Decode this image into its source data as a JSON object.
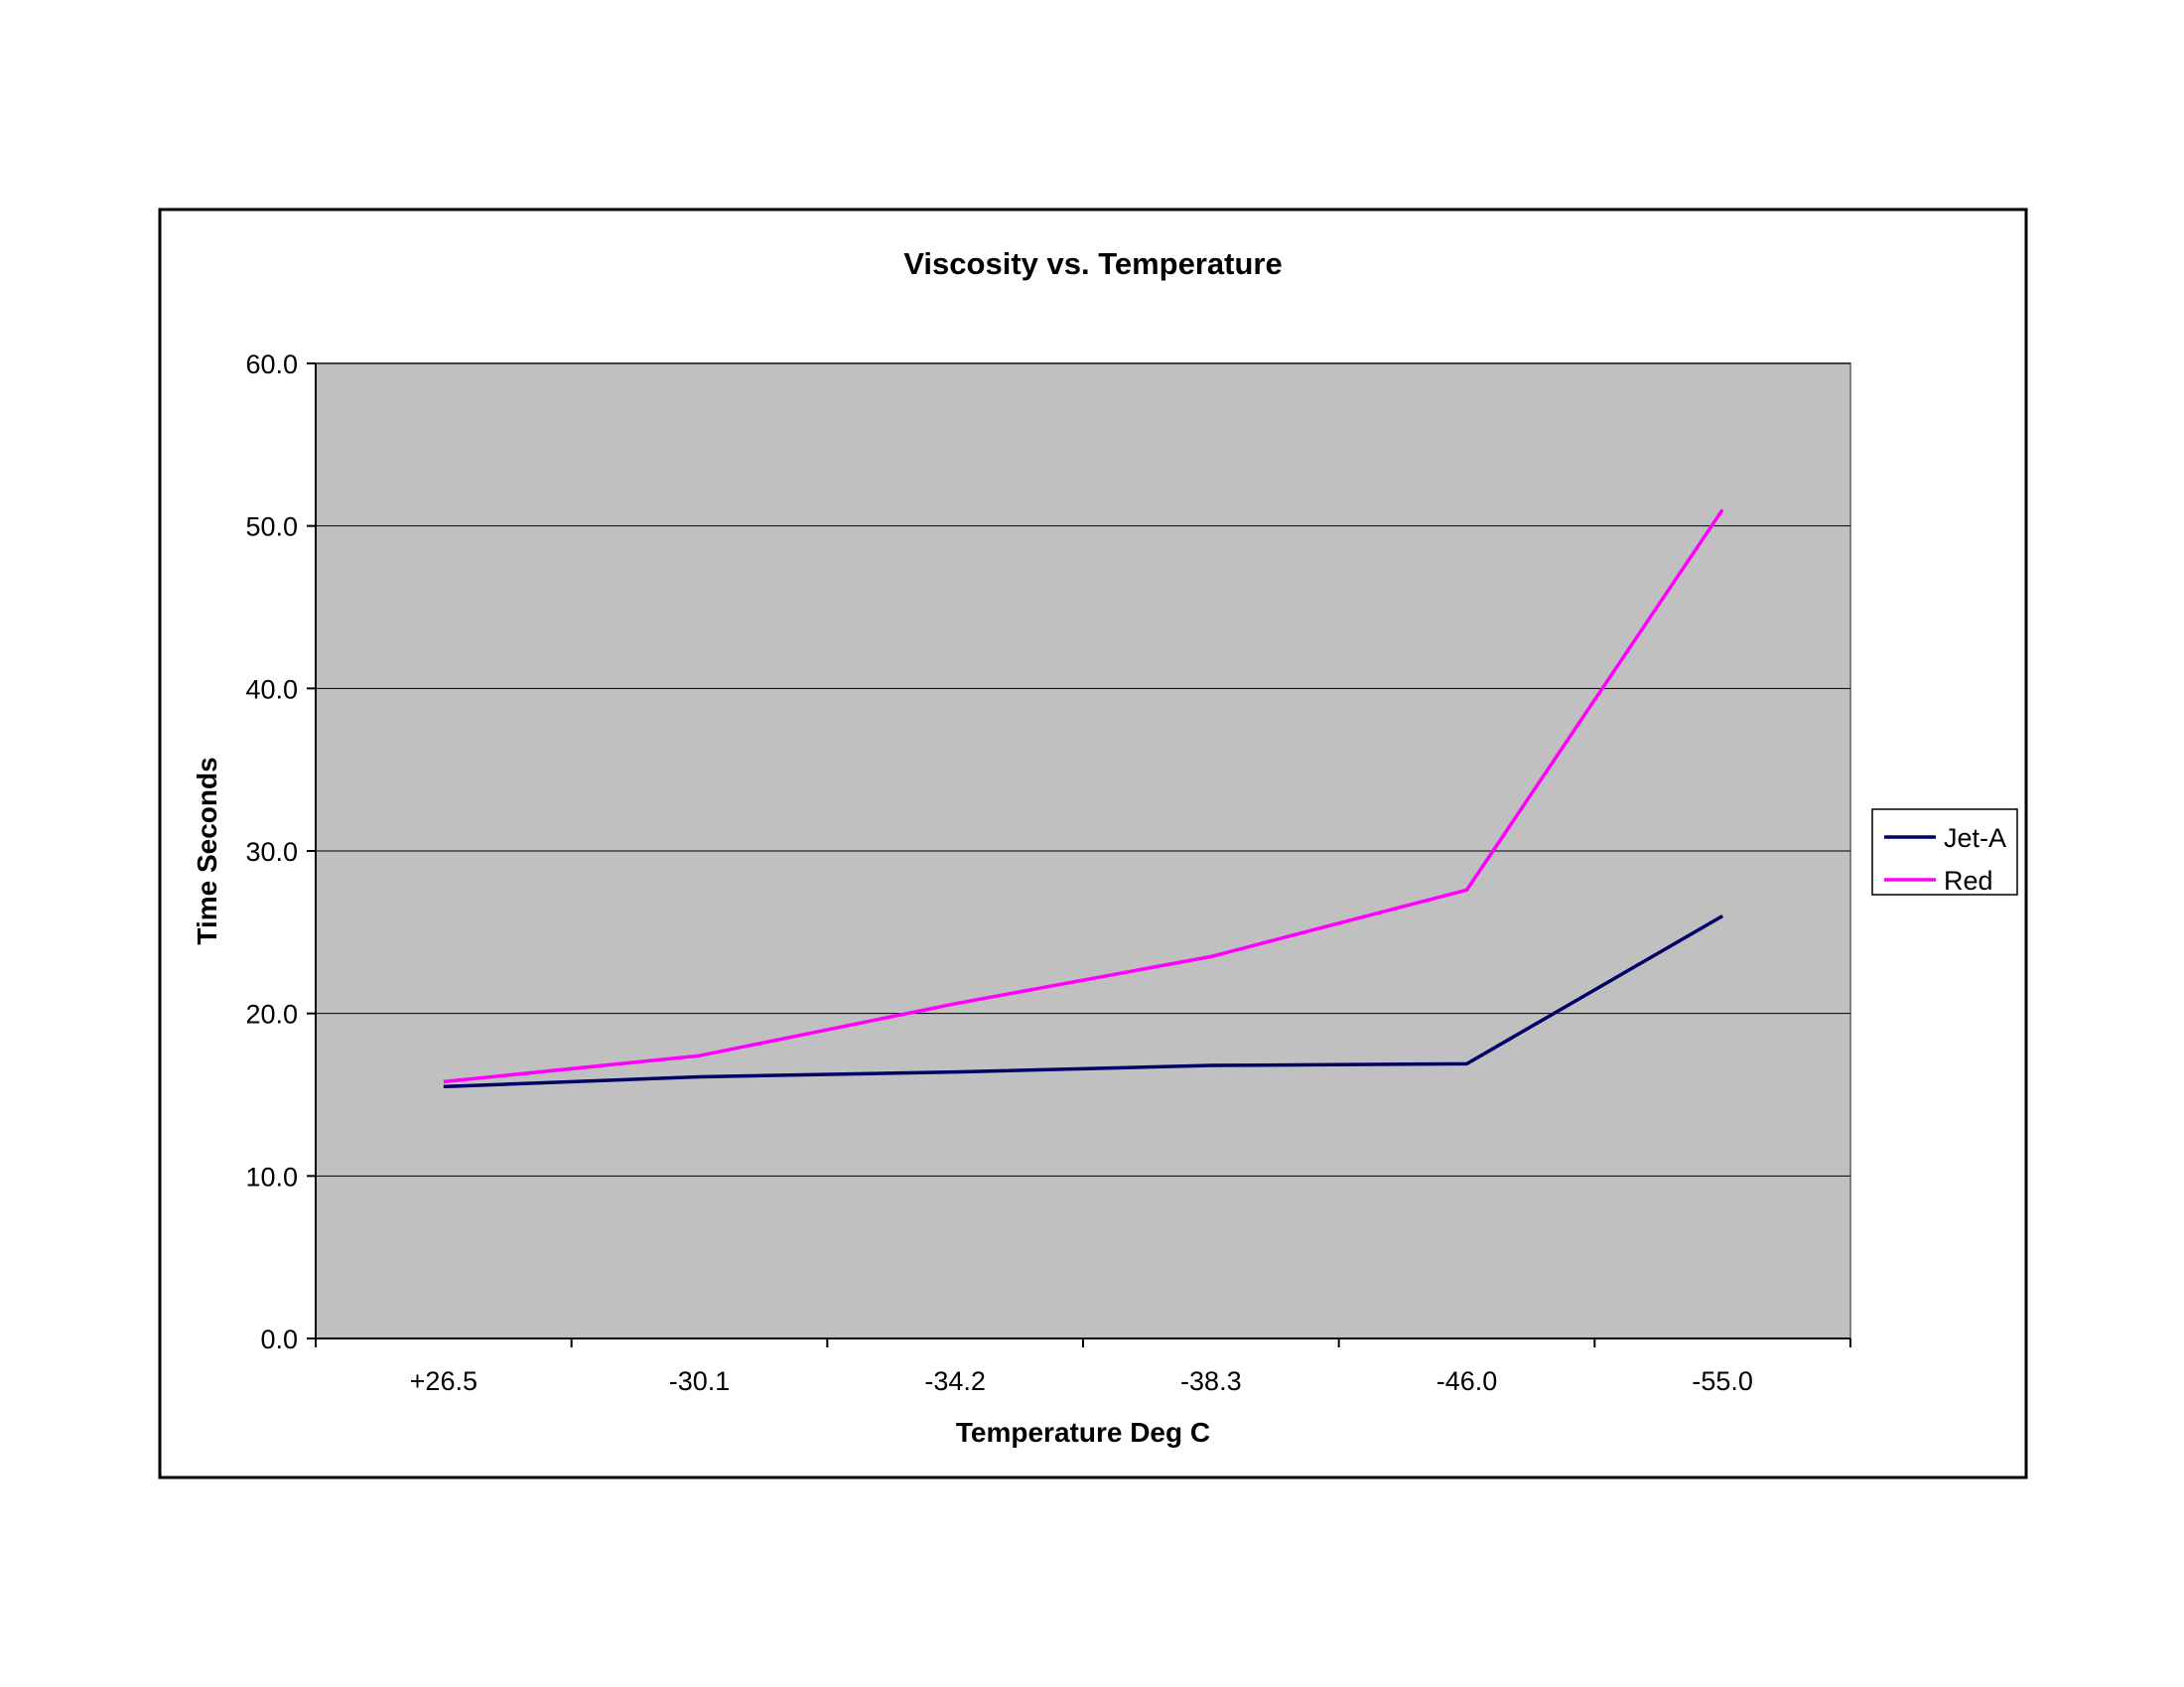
{
  "chart_data": {
    "type": "line",
    "title": "Viscosity vs. Temperature",
    "xlabel": "Temperature Deg C",
    "ylabel": "Time Seconds",
    "categories": [
      "+26.5",
      "-30.1",
      "-34.2",
      "-38.3",
      "-46.0",
      "-55.0"
    ],
    "ylim": [
      0,
      60
    ],
    "yticks": [
      "0.0",
      "10.0",
      "20.0",
      "30.0",
      "40.0",
      "50.0",
      "60.0"
    ],
    "grid": true,
    "legend_position": "right",
    "plot_background": "#c0c0c0",
    "series": [
      {
        "name": "Jet-A",
        "color": "#000066",
        "values": [
          15.5,
          16.1,
          16.4,
          16.8,
          16.9,
          26.0
        ]
      },
      {
        "name": "Red",
        "color": "#ff00ff",
        "values": [
          15.8,
          17.4,
          20.6,
          23.5,
          27.6,
          51.0
        ]
      }
    ]
  }
}
